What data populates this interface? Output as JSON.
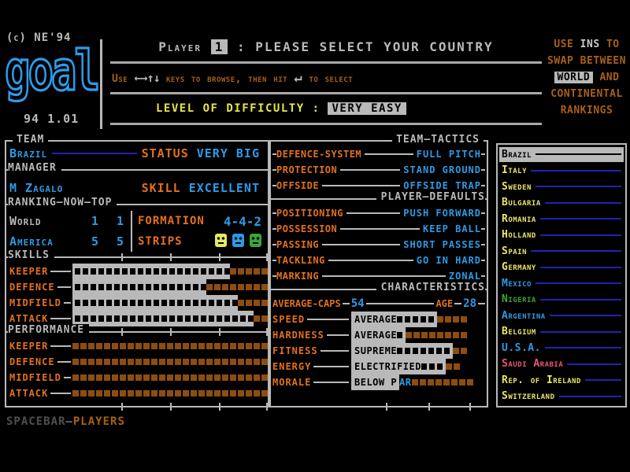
{
  "palette": {
    "blue": "#2e9ae4",
    "navy": "#2222b2",
    "orange": "#e2711c",
    "brown_square": "#8e4d10",
    "header_brown": "#a86018",
    "gray": "#b9b9b9",
    "yellow": "#e9e468",
    "green": "#3aa53a",
    "pink": "#e85575",
    "selected_bg": "#b9b9b9"
  },
  "logo": {
    "copyright": "(c) NE'94",
    "word": "goal",
    "version": "94 1.01"
  },
  "header": {
    "player_label": "Player",
    "player_number": "1",
    "prompt": ": PLEASE SELECT YOUR COUNTRY",
    "browse": {
      "pre": "Use",
      "arrows": "←→↑↓",
      "mid": "keys to browse, then hit",
      "enter": "↵",
      "post": "to select"
    },
    "difficulty_label": "LEVEL OF DIFFICULTY",
    "difficulty_colon": ":",
    "difficulty_value": "VERY EASY",
    "note": {
      "l1a": "USE",
      "l1b": "INS",
      "l1c": "TO",
      "l2": "SWAP BETWEEN",
      "l3a": "WORLD",
      "l3b": "AND",
      "l4": "CONTINENTAL",
      "l5": "RANKINGS"
    }
  },
  "team_panel": {
    "section_team": "TEAM",
    "team_name": "Brazil",
    "status_label": "STATUS",
    "status_value": "VERY BIG",
    "section_manager": "MANAGER",
    "manager_name": "M Zagalo",
    "skill_label": "SKILL",
    "skill_value": "EXCELLENT",
    "section_ranking": "RANKING—NOW—TOP",
    "ranking_rows": [
      {
        "name": "World",
        "now": "1",
        "top": "1",
        "name_color": "gray"
      },
      {
        "name": "America",
        "now": "5",
        "top": "5",
        "name_color": "blue"
      }
    ],
    "formation_label": "FORMATION",
    "formation_value": "4-4-2",
    "strips_label": "STRIPS",
    "strip_colors": [
      "#e8e46a",
      "#2e9ae4",
      "#3aa53a"
    ],
    "section_skills": "SKILLS",
    "skills": [
      {
        "label": "KEEPER",
        "filled": 20,
        "empty": 5
      },
      {
        "label": "DEFENCE",
        "filled": 17,
        "empty": 8
      },
      {
        "label": "MIDFIELD",
        "filled": 21,
        "empty": 4
      },
      {
        "label": "ATTACK",
        "filled": 23,
        "empty": 2
      }
    ],
    "section_performance": "PERFORMANCE",
    "performance": [
      {
        "label": "KEEPER",
        "filled": 0,
        "empty": 25
      },
      {
        "label": "DEFENCE",
        "filled": 0,
        "empty": 25
      },
      {
        "label": "MIDFIELD",
        "filled": 0,
        "empty": 25
      },
      {
        "label": "ATTACK",
        "filled": 0,
        "empty": 25
      }
    ]
  },
  "tactics_panel": {
    "section_tactics": "TEAM—TACTICS",
    "tactics": [
      {
        "label": "DEFENCE-SYSTEM",
        "value": "FULL PITCH"
      },
      {
        "label": "PROTECTION",
        "value": "STAND GROUND"
      },
      {
        "label": "OFFSIDE",
        "value": "OFFSIDE TRAP"
      }
    ],
    "section_defaults": "PLAYER—DEFAULTS",
    "defaults": [
      {
        "label": "POSITIONING",
        "value": "PUSH FORWARD"
      },
      {
        "label": "POSSESSION",
        "value": "KEEP BALL"
      },
      {
        "label": "PASSING",
        "value": "SHORT PASSES"
      },
      {
        "label": "TACKLING",
        "value": "GO IN HARD"
      },
      {
        "label": "MARKING",
        "value": "ZONAL"
      }
    ],
    "section_characteristics": "CHARACTERISTICS",
    "caps_label": "AVERAGE-CAPS",
    "caps_value": "54",
    "age_label": "AGE",
    "age_value": "28",
    "characteristics": [
      {
        "label": "SPEED",
        "rating": "AVERAGE",
        "overflow": "",
        "black_squares": 5,
        "brown_squares": 4
      },
      {
        "label": "HARDNESS",
        "rating": "AVERAGE",
        "overflow": "",
        "black_squares": 1,
        "brown_squares": 8
      },
      {
        "label": "FITNESS",
        "rating": "SUPREME",
        "overflow": "",
        "black_squares": 7,
        "brown_squares": 2
      },
      {
        "label": "ENERGY",
        "rating": "ELECTRIFIED",
        "overflow": "",
        "black_squares": 3,
        "brown_squares": 2
      },
      {
        "label": "MORALE",
        "rating": "BELOW P",
        "overflow": "AR",
        "black_squares": 0,
        "brown_squares": 8
      }
    ]
  },
  "country_list": {
    "selected_index": 0,
    "countries": [
      {
        "name": "Brazil",
        "color": "selected"
      },
      {
        "name": "Italy",
        "color": "yellow"
      },
      {
        "name": "Sweden",
        "color": "yellow"
      },
      {
        "name": "Bulgaria",
        "color": "yellow"
      },
      {
        "name": "Romania",
        "color": "yellow"
      },
      {
        "name": "Holland",
        "color": "yellow"
      },
      {
        "name": "Spain",
        "color": "yellow"
      },
      {
        "name": "Germany",
        "color": "yellow"
      },
      {
        "name": "Mexico",
        "color": "blue"
      },
      {
        "name": "Nigeria",
        "color": "green"
      },
      {
        "name": "Argentina",
        "color": "blue"
      },
      {
        "name": "Belgium",
        "color": "yellow"
      },
      {
        "name": "U.S.A.",
        "color": "blue"
      },
      {
        "name": "Saudi Arabia",
        "color": "pink"
      },
      {
        "name": "Rep. of Ireland",
        "color": "yellow"
      },
      {
        "name": "Switzerland",
        "color": "yellow"
      }
    ]
  },
  "footer": {
    "spacebar_label": "SPACEBAR",
    "separator": "—",
    "players_label": "PLAYERS"
  }
}
